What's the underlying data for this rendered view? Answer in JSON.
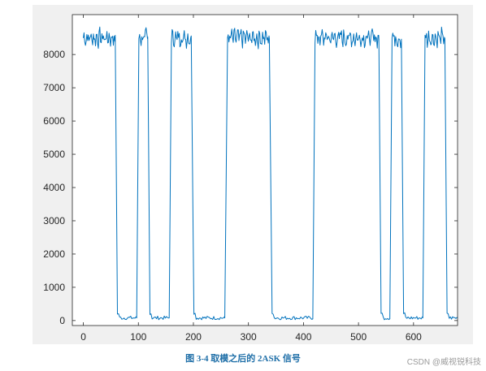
{
  "figure": {
    "caption": "图 3-4 取模之后的 2ASK 信号",
    "watermark": "CSDN @威视锐科技",
    "background_color": "#f0f0f0",
    "axes_color": "#ffffff",
    "line_color": "#0072bd"
  },
  "chart_data": {
    "type": "line",
    "title": "",
    "xlabel": "",
    "ylabel": "",
    "xlim": [
      -20,
      680
    ],
    "ylim": [
      -150,
      9200
    ],
    "xticks": [
      0,
      100,
      200,
      300,
      400,
      500,
      600
    ],
    "yticks": [
      0,
      1000,
      2000,
      3000,
      4000,
      5000,
      6000,
      7000,
      8000
    ],
    "grid": false,
    "legend": "none",
    "high_level_approx": 8500,
    "low_level_approx": 80,
    "segments": [
      {
        "state": "high",
        "x_start": 0,
        "x_end": 58
      },
      {
        "state": "low",
        "x_start": 62,
        "x_end": 97
      },
      {
        "state": "high",
        "x_start": 101,
        "x_end": 117
      },
      {
        "state": "low",
        "x_start": 121,
        "x_end": 156
      },
      {
        "state": "high",
        "x_start": 160,
        "x_end": 196
      },
      {
        "state": "low",
        "x_start": 201,
        "x_end": 257
      },
      {
        "state": "high",
        "x_start": 262,
        "x_end": 338
      },
      {
        "state": "low",
        "x_start": 343,
        "x_end": 417
      },
      {
        "state": "high",
        "x_start": 421,
        "x_end": 537
      },
      {
        "state": "low",
        "x_start": 541,
        "x_end": 557
      },
      {
        "state": "high",
        "x_start": 561,
        "x_end": 578
      },
      {
        "state": "low",
        "x_start": 582,
        "x_end": 617
      },
      {
        "state": "high",
        "x_start": 621,
        "x_end": 657
      },
      {
        "state": "low",
        "x_start": 661,
        "x_end": 680
      }
    ]
  }
}
